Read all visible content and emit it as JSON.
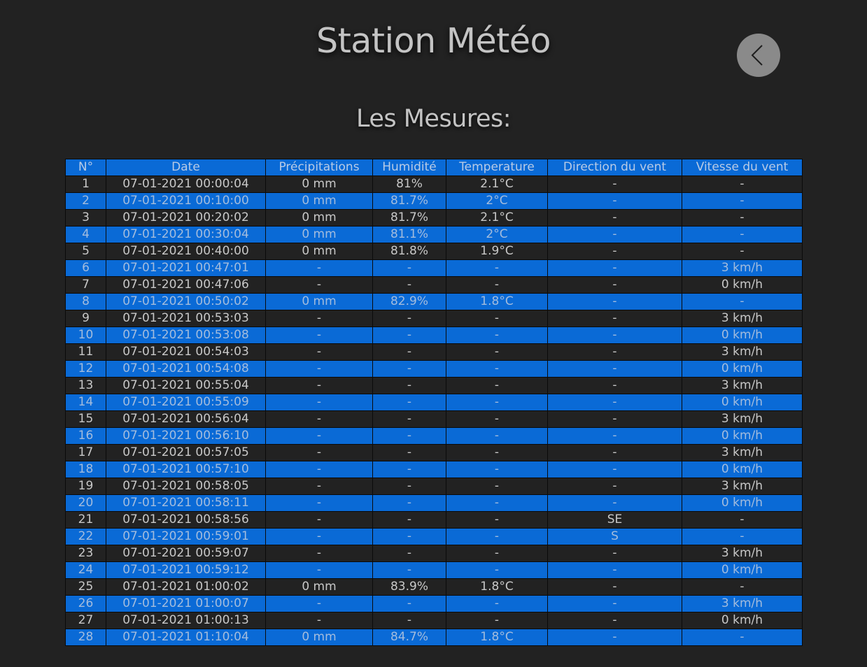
{
  "header": {
    "title": "Station Météo",
    "back_icon": "chevron-left-icon"
  },
  "section": {
    "title": "Les Mesures:"
  },
  "colors": {
    "background": "#222222",
    "accent": "#0a6ad6",
    "text": "#c4c4c4"
  },
  "table": {
    "columns": [
      "N°",
      "Date",
      "Précipitations",
      "Humidité",
      "Temperature",
      "Direction du vent",
      "Vitesse du vent"
    ],
    "rows": [
      [
        "1",
        "07-01-2021 00:00:04",
        "0 mm",
        "81%",
        "2.1°C",
        "-",
        "-"
      ],
      [
        "2",
        "07-01-2021 00:10:00",
        "0 mm",
        "81.7%",
        "2°C",
        "-",
        "-"
      ],
      [
        "3",
        "07-01-2021 00:20:02",
        "0 mm",
        "81.7%",
        "2.1°C",
        "-",
        "-"
      ],
      [
        "4",
        "07-01-2021 00:30:04",
        "0 mm",
        "81.1%",
        "2°C",
        "-",
        "-"
      ],
      [
        "5",
        "07-01-2021 00:40:00",
        "0 mm",
        "81.8%",
        "1.9°C",
        "-",
        "-"
      ],
      [
        "6",
        "07-01-2021 00:47:01",
        "-",
        "-",
        "-",
        "-",
        "3 km/h"
      ],
      [
        "7",
        "07-01-2021 00:47:06",
        "-",
        "-",
        "-",
        "-",
        "0 km/h"
      ],
      [
        "8",
        "07-01-2021 00:50:02",
        "0 mm",
        "82.9%",
        "1.8°C",
        "-",
        "-"
      ],
      [
        "9",
        "07-01-2021 00:53:03",
        "-",
        "-",
        "-",
        "-",
        "3 km/h"
      ],
      [
        "10",
        "07-01-2021 00:53:08",
        "-",
        "-",
        "-",
        "-",
        "0 km/h"
      ],
      [
        "11",
        "07-01-2021 00:54:03",
        "-",
        "-",
        "-",
        "-",
        "3 km/h"
      ],
      [
        "12",
        "07-01-2021 00:54:08",
        "-",
        "-",
        "-",
        "-",
        "0 km/h"
      ],
      [
        "13",
        "07-01-2021 00:55:04",
        "-",
        "-",
        "-",
        "-",
        "3 km/h"
      ],
      [
        "14",
        "07-01-2021 00:55:09",
        "-",
        "-",
        "-",
        "-",
        "0 km/h"
      ],
      [
        "15",
        "07-01-2021 00:56:04",
        "-",
        "-",
        "-",
        "-",
        "3 km/h"
      ],
      [
        "16",
        "07-01-2021 00:56:10",
        "-",
        "-",
        "-",
        "-",
        "0 km/h"
      ],
      [
        "17",
        "07-01-2021 00:57:05",
        "-",
        "-",
        "-",
        "-",
        "3 km/h"
      ],
      [
        "18",
        "07-01-2021 00:57:10",
        "-",
        "-",
        "-",
        "-",
        "0 km/h"
      ],
      [
        "19",
        "07-01-2021 00:58:05",
        "-",
        "-",
        "-",
        "-",
        "3 km/h"
      ],
      [
        "20",
        "07-01-2021 00:58:11",
        "-",
        "-",
        "-",
        "-",
        "0 km/h"
      ],
      [
        "21",
        "07-01-2021 00:58:56",
        "-",
        "-",
        "-",
        "SE",
        "-"
      ],
      [
        "22",
        "07-01-2021 00:59:01",
        "-",
        "-",
        "-",
        "S",
        "-"
      ],
      [
        "23",
        "07-01-2021 00:59:07",
        "-",
        "-",
        "-",
        "-",
        "3 km/h"
      ],
      [
        "24",
        "07-01-2021 00:59:12",
        "-",
        "-",
        "-",
        "-",
        "0 km/h"
      ],
      [
        "25",
        "07-01-2021 01:00:02",
        "0 mm",
        "83.9%",
        "1.8°C",
        "-",
        "-"
      ],
      [
        "26",
        "07-01-2021 01:00:07",
        "-",
        "-",
        "-",
        "-",
        "3 km/h"
      ],
      [
        "27",
        "07-01-2021 01:00:13",
        "-",
        "-",
        "-",
        "-",
        "0 km/h"
      ],
      [
        "28",
        "07-01-2021 01:10:04",
        "0 mm",
        "84.7%",
        "1.8°C",
        "-",
        "-"
      ]
    ]
  }
}
